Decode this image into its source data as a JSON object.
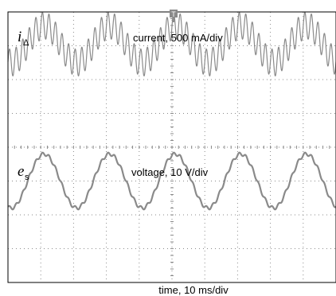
{
  "chart_data": {
    "type": "line",
    "xlabel": "time, 10 ms/div",
    "x_divisions": 10,
    "y_divisions": 8,
    "grid": true,
    "colors": {
      "trace": "#8a8a8a",
      "grid": "#8a8a8a",
      "frame": "#000000",
      "marker": "#8a8a8a"
    },
    "channels": [
      {
        "symbol": "i",
        "subscript": "Δ",
        "label": "current, 500 mA/div",
        "fundamental_period_div": 2.0,
        "fundamental_amplitude_div": 0.55,
        "fundamental_offset_div": 3.05,
        "ripple_period_div": 0.2,
        "ripple_amplitude_div": 0.4
      },
      {
        "symbol": "e",
        "subscript": "s",
        "label": "voltage, 10 V/div",
        "fundamental_period_div": 2.0,
        "fundamental_amplitude_div": 0.8,
        "fundamental_offset_div": -1.0,
        "ripple_period_div": 0.2,
        "ripple_amplitude_div": 0.05
      }
    ]
  }
}
